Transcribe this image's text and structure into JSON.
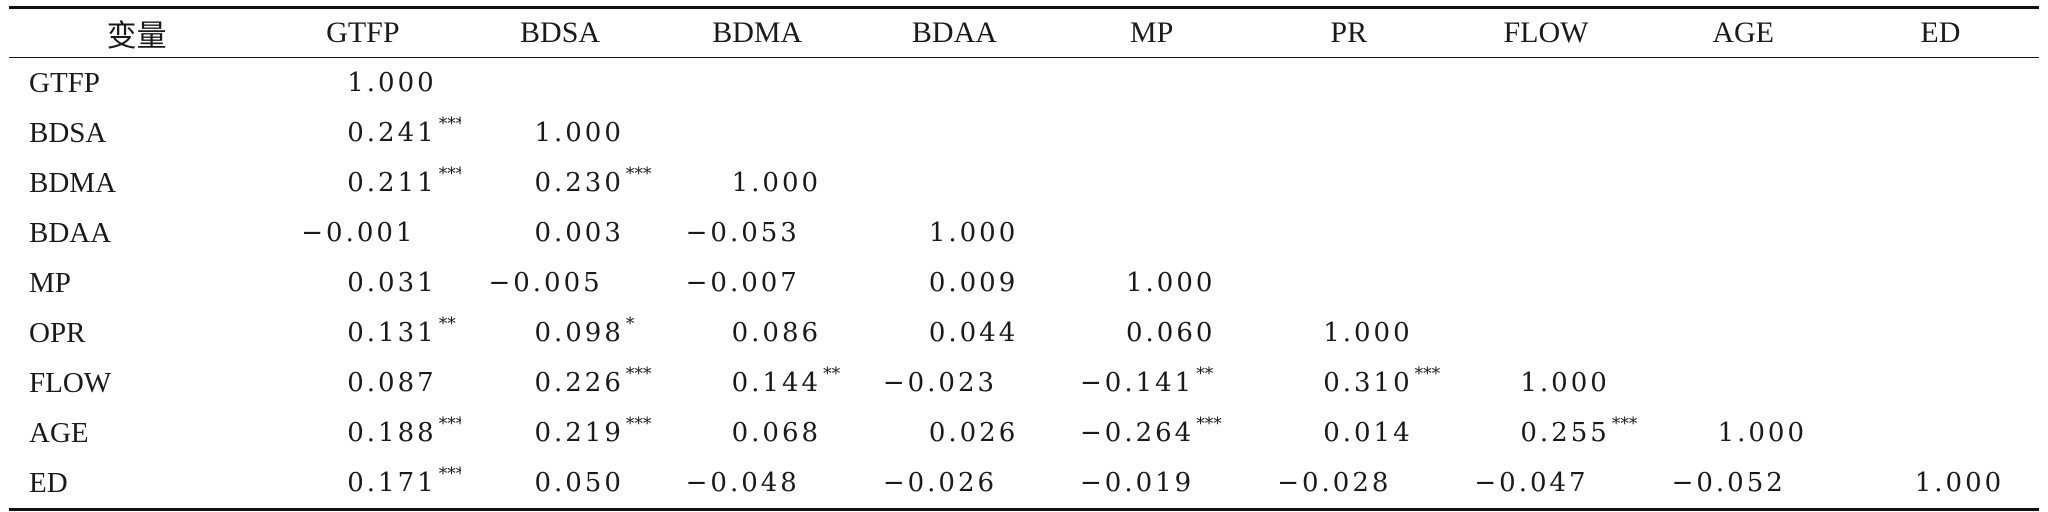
{
  "table": {
    "headers": [
      "变量",
      "GTFP",
      "BDSA",
      "BDMA",
      "BDAA",
      "MP",
      "PR",
      "FLOW",
      "AGE",
      "ED"
    ],
    "rows": [
      {
        "label": "GTFP",
        "cells": [
          {
            "v": "1.000",
            "s": ""
          },
          {
            "v": "",
            "s": ""
          },
          {
            "v": "",
            "s": ""
          },
          {
            "v": "",
            "s": ""
          },
          {
            "v": "",
            "s": ""
          },
          {
            "v": "",
            "s": ""
          },
          {
            "v": "",
            "s": ""
          },
          {
            "v": "",
            "s": ""
          },
          {
            "v": "",
            "s": ""
          }
        ]
      },
      {
        "label": "BDSA",
        "cells": [
          {
            "v": "0.241",
            "s": "***"
          },
          {
            "v": "1.000",
            "s": ""
          },
          {
            "v": "",
            "s": ""
          },
          {
            "v": "",
            "s": ""
          },
          {
            "v": "",
            "s": ""
          },
          {
            "v": "",
            "s": ""
          },
          {
            "v": "",
            "s": ""
          },
          {
            "v": "",
            "s": ""
          },
          {
            "v": "",
            "s": ""
          }
        ]
      },
      {
        "label": "BDMA",
        "cells": [
          {
            "v": "0.211",
            "s": "***"
          },
          {
            "v": "0.230",
            "s": "***"
          },
          {
            "v": "1.000",
            "s": ""
          },
          {
            "v": "",
            "s": ""
          },
          {
            "v": "",
            "s": ""
          },
          {
            "v": "",
            "s": ""
          },
          {
            "v": "",
            "s": ""
          },
          {
            "v": "",
            "s": ""
          },
          {
            "v": "",
            "s": ""
          }
        ]
      },
      {
        "label": "BDAA",
        "cells": [
          {
            "v": "−0.001",
            "s": ""
          },
          {
            "v": "0.003",
            "s": ""
          },
          {
            "v": "−0.053",
            "s": ""
          },
          {
            "v": "1.000",
            "s": ""
          },
          {
            "v": "",
            "s": ""
          },
          {
            "v": "",
            "s": ""
          },
          {
            "v": "",
            "s": ""
          },
          {
            "v": "",
            "s": ""
          },
          {
            "v": "",
            "s": ""
          }
        ]
      },
      {
        "label": "MP",
        "cells": [
          {
            "v": "0.031",
            "s": ""
          },
          {
            "v": "−0.005",
            "s": ""
          },
          {
            "v": "−0.007",
            "s": ""
          },
          {
            "v": "0.009",
            "s": ""
          },
          {
            "v": "1.000",
            "s": ""
          },
          {
            "v": "",
            "s": ""
          },
          {
            "v": "",
            "s": ""
          },
          {
            "v": "",
            "s": ""
          },
          {
            "v": "",
            "s": ""
          }
        ]
      },
      {
        "label": "OPR",
        "cells": [
          {
            "v": "0.131",
            "s": "**"
          },
          {
            "v": "0.098",
            "s": "*"
          },
          {
            "v": "0.086",
            "s": ""
          },
          {
            "v": "0.044",
            "s": ""
          },
          {
            "v": "0.060",
            "s": ""
          },
          {
            "v": "1.000",
            "s": ""
          },
          {
            "v": "",
            "s": ""
          },
          {
            "v": "",
            "s": ""
          },
          {
            "v": "",
            "s": ""
          }
        ]
      },
      {
        "label": "FLOW",
        "cells": [
          {
            "v": "0.087",
            "s": ""
          },
          {
            "v": "0.226",
            "s": "***"
          },
          {
            "v": "0.144",
            "s": "**"
          },
          {
            "v": "−0.023",
            "s": ""
          },
          {
            "v": "−0.141",
            "s": "**"
          },
          {
            "v": "0.310",
            "s": "***"
          },
          {
            "v": "1.000",
            "s": ""
          },
          {
            "v": "",
            "s": ""
          },
          {
            "v": "",
            "s": ""
          }
        ]
      },
      {
        "label": "AGE",
        "cells": [
          {
            "v": "0.188",
            "s": "***"
          },
          {
            "v": "0.219",
            "s": "***"
          },
          {
            "v": "0.068",
            "s": ""
          },
          {
            "v": "0.026",
            "s": ""
          },
          {
            "v": "−0.264",
            "s": "***"
          },
          {
            "v": "0.014",
            "s": ""
          },
          {
            "v": "0.255",
            "s": "***"
          },
          {
            "v": "1.000",
            "s": ""
          },
          {
            "v": "",
            "s": ""
          }
        ]
      },
      {
        "label": "ED",
        "cells": [
          {
            "v": "0.171",
            "s": "***"
          },
          {
            "v": "0.050",
            "s": ""
          },
          {
            "v": "−0.048",
            "s": ""
          },
          {
            "v": "−0.026",
            "s": ""
          },
          {
            "v": "−0.019",
            "s": ""
          },
          {
            "v": "−0.028",
            "s": ""
          },
          {
            "v": "−0.047",
            "s": ""
          },
          {
            "v": "−0.052",
            "s": ""
          },
          {
            "v": "1.000",
            "s": ""
          }
        ]
      }
    ]
  }
}
